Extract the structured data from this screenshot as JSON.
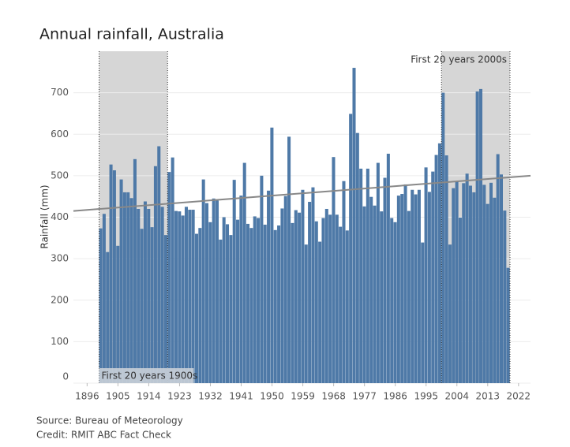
{
  "chart_data": {
    "type": "bar",
    "title": "Annual rainfall, Australia",
    "y_label": "Rainfall (mm)",
    "source": "Source: Bureau of Meteorology",
    "credit": "Credit: RMIT ABC Fact Check",
    "color": "#4e79a7",
    "grid": true,
    "x": [
      1900,
      1901,
      1902,
      1903,
      1904,
      1905,
      1906,
      1907,
      1908,
      1909,
      1910,
      1911,
      1912,
      1913,
      1914,
      1915,
      1916,
      1917,
      1918,
      1919,
      1920,
      1921,
      1922,
      1923,
      1924,
      1925,
      1926,
      1927,
      1928,
      1929,
      1930,
      1931,
      1932,
      1933,
      1934,
      1935,
      1936,
      1937,
      1938,
      1939,
      1940,
      1941,
      1942,
      1943,
      1944,
      1945,
      1946,
      1947,
      1948,
      1949,
      1950,
      1951,
      1952,
      1953,
      1954,
      1955,
      1956,
      1957,
      1958,
      1959,
      1960,
      1961,
      1962,
      1963,
      1964,
      1965,
      1966,
      1967,
      1968,
      1969,
      1970,
      1971,
      1972,
      1973,
      1974,
      1975,
      1976,
      1977,
      1978,
      1979,
      1980,
      1981,
      1982,
      1983,
      1984,
      1985,
      1986,
      1987,
      1988,
      1989,
      1990,
      1991,
      1992,
      1993,
      1994,
      1995,
      1996,
      1997,
      1998,
      1999,
      2000,
      2001,
      2002,
      2003,
      2004,
      2005,
      2006,
      2007,
      2008,
      2009,
      2010,
      2011,
      2012,
      2013,
      2014,
      2015,
      2016,
      2017,
      2018,
      2019
    ],
    "values": [
      373,
      408,
      316,
      527,
      513,
      331,
      491,
      460,
      460,
      446,
      540,
      420,
      372,
      438,
      420,
      376,
      523,
      571,
      425,
      357,
      509,
      544,
      415,
      414,
      404,
      425,
      418,
      418,
      360,
      374,
      491,
      434,
      388,
      445,
      440,
      346,
      400,
      383,
      357,
      490,
      394,
      452,
      531,
      384,
      374,
      402,
      398,
      500,
      382,
      464,
      616,
      369,
      380,
      421,
      451,
      594,
      386,
      417,
      411,
      466,
      334,
      437,
      472,
      390,
      341,
      398,
      420,
      406,
      545,
      406,
      377,
      487,
      368,
      649,
      760,
      603,
      517,
      426,
      517,
      449,
      428,
      531,
      414,
      495,
      553,
      398,
      388,
      452,
      456,
      479,
      415,
      466,
      455,
      466,
      339,
      520,
      461,
      510,
      550,
      578,
      700,
      549,
      334,
      470,
      486,
      399,
      482,
      505,
      476,
      460,
      703,
      709,
      478,
      432,
      483,
      447,
      552,
      503,
      416,
      278
    ],
    "xlim": [
      1892,
      2025.5
    ],
    "xticks": [
      1896,
      1905,
      1914,
      1923,
      1932,
      1941,
      1950,
      1959,
      1968,
      1977,
      1986,
      1995,
      2004,
      2013,
      2022
    ],
    "ylim": [
      0,
      800
    ],
    "yticks": [
      0,
      100,
      200,
      300,
      400,
      500,
      600,
      700
    ],
    "highlights": [
      {
        "label": "First 20 years 1900s",
        "start": 1900,
        "end": 1919
      },
      {
        "label": "First 20 years 2000s",
        "start": 2000,
        "end": 2019
      }
    ],
    "trend": {
      "x": [
        1892,
        2025.5
      ],
      "values": [
        415,
        500
      ],
      "color": "#888888"
    }
  }
}
